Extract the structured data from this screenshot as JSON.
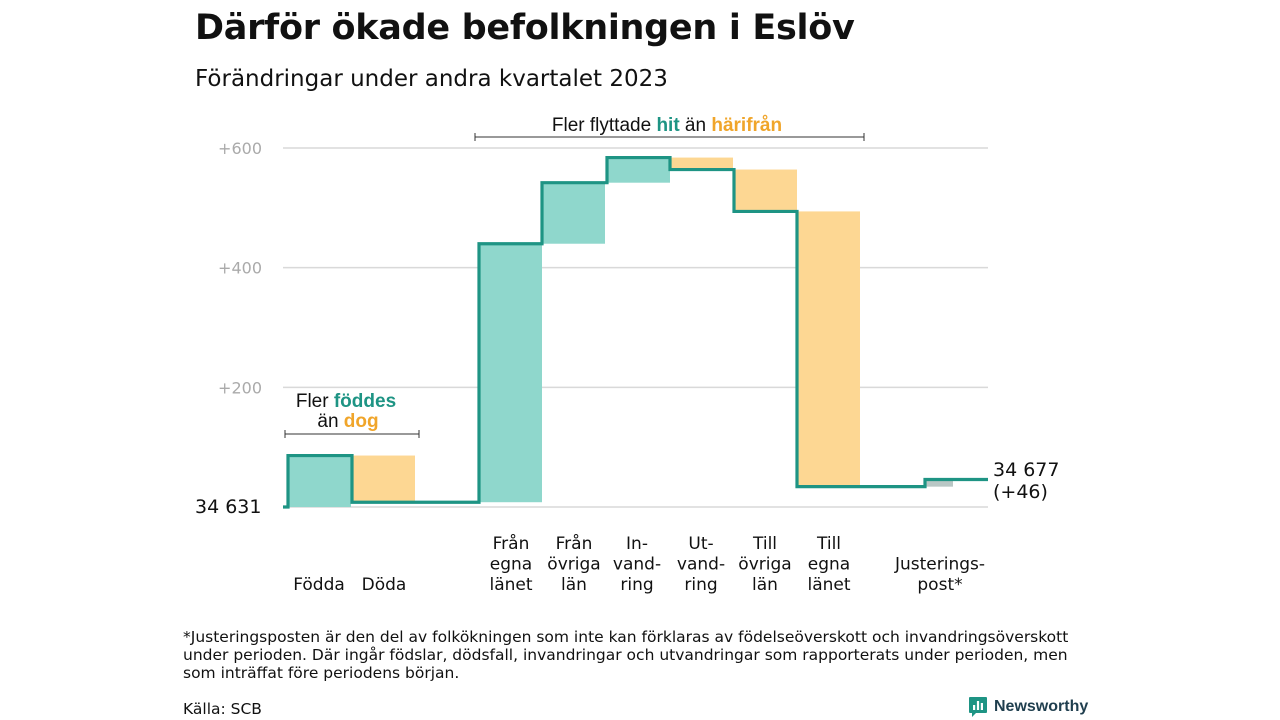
{
  "title": "Därför ökade befolkningen i Eslöv",
  "subtitle": "Förändringar under andra kvartalet 2023",
  "colors": {
    "positive": "#8fd7cc",
    "negative": "#fdd793",
    "adjustment": "#b9c7c5",
    "line": "#1e9484",
    "grid": "#d9d9d9",
    "tick": "#aaaaaa",
    "hit": "#1e9484",
    "harifran": "#f0a52a"
  },
  "chart_data": {
    "type": "waterfall",
    "baseline": 34631,
    "start_label": "34  631",
    "end_label_line1": "34 677",
    "end_label_line2": "(+46)",
    "ylim": [
      0,
      600
    ],
    "yticks": [
      200,
      400,
      600
    ],
    "ytick_labels": [
      "+200",
      "+400",
      "+600"
    ],
    "steps": [
      {
        "label_lines": [
          "Födda"
        ],
        "value": 86,
        "kind": "positive"
      },
      {
        "label_lines": [
          "Döda"
        ],
        "value": -78,
        "kind": "negative"
      },
      {
        "label_lines": [
          "Från",
          "egna",
          "länet"
        ],
        "value": 432,
        "kind": "positive"
      },
      {
        "label_lines": [
          "Från",
          "övriga",
          "län"
        ],
        "value": 102,
        "kind": "positive"
      },
      {
        "label_lines": [
          "In-",
          "vand-",
          "ring"
        ],
        "value": 42,
        "kind": "positive"
      },
      {
        "label_lines": [
          "Ut-",
          "vand-",
          "ring"
        ],
        "value": -20,
        "kind": "negative"
      },
      {
        "label_lines": [
          "Till",
          "övriga",
          "län"
        ],
        "value": -70,
        "kind": "negative"
      },
      {
        "label_lines": [
          "Till",
          "egna",
          "länet"
        ],
        "value": -460,
        "kind": "negative"
      },
      {
        "label_lines": [
          "Justerings-",
          "post*"
        ],
        "value": 12,
        "kind": "adjustment"
      }
    ],
    "annotations": {
      "births": {
        "text_a": "Fler ",
        "strong_a": "föddes",
        "text_b": "än ",
        "strong_b": "dog"
      },
      "moves": {
        "text_a": "Fler flyttade ",
        "strong_a": "hit",
        "text_b": " än ",
        "strong_b": "härifrån"
      }
    }
  },
  "footnote": "*Justeringsposten är den del av folkökningen som inte kan förklaras av födelseöverskott och invandringsöverskott under perioden. Där ingår födslar, dödsfall, invandringar och utvandringar som rapporterats under perioden, men som inträffat före periodens början.",
  "source": "Källa: SCB",
  "brand": {
    "name": "Newsworthy",
    "logo_icon": "bar-chart-logo-icon"
  }
}
